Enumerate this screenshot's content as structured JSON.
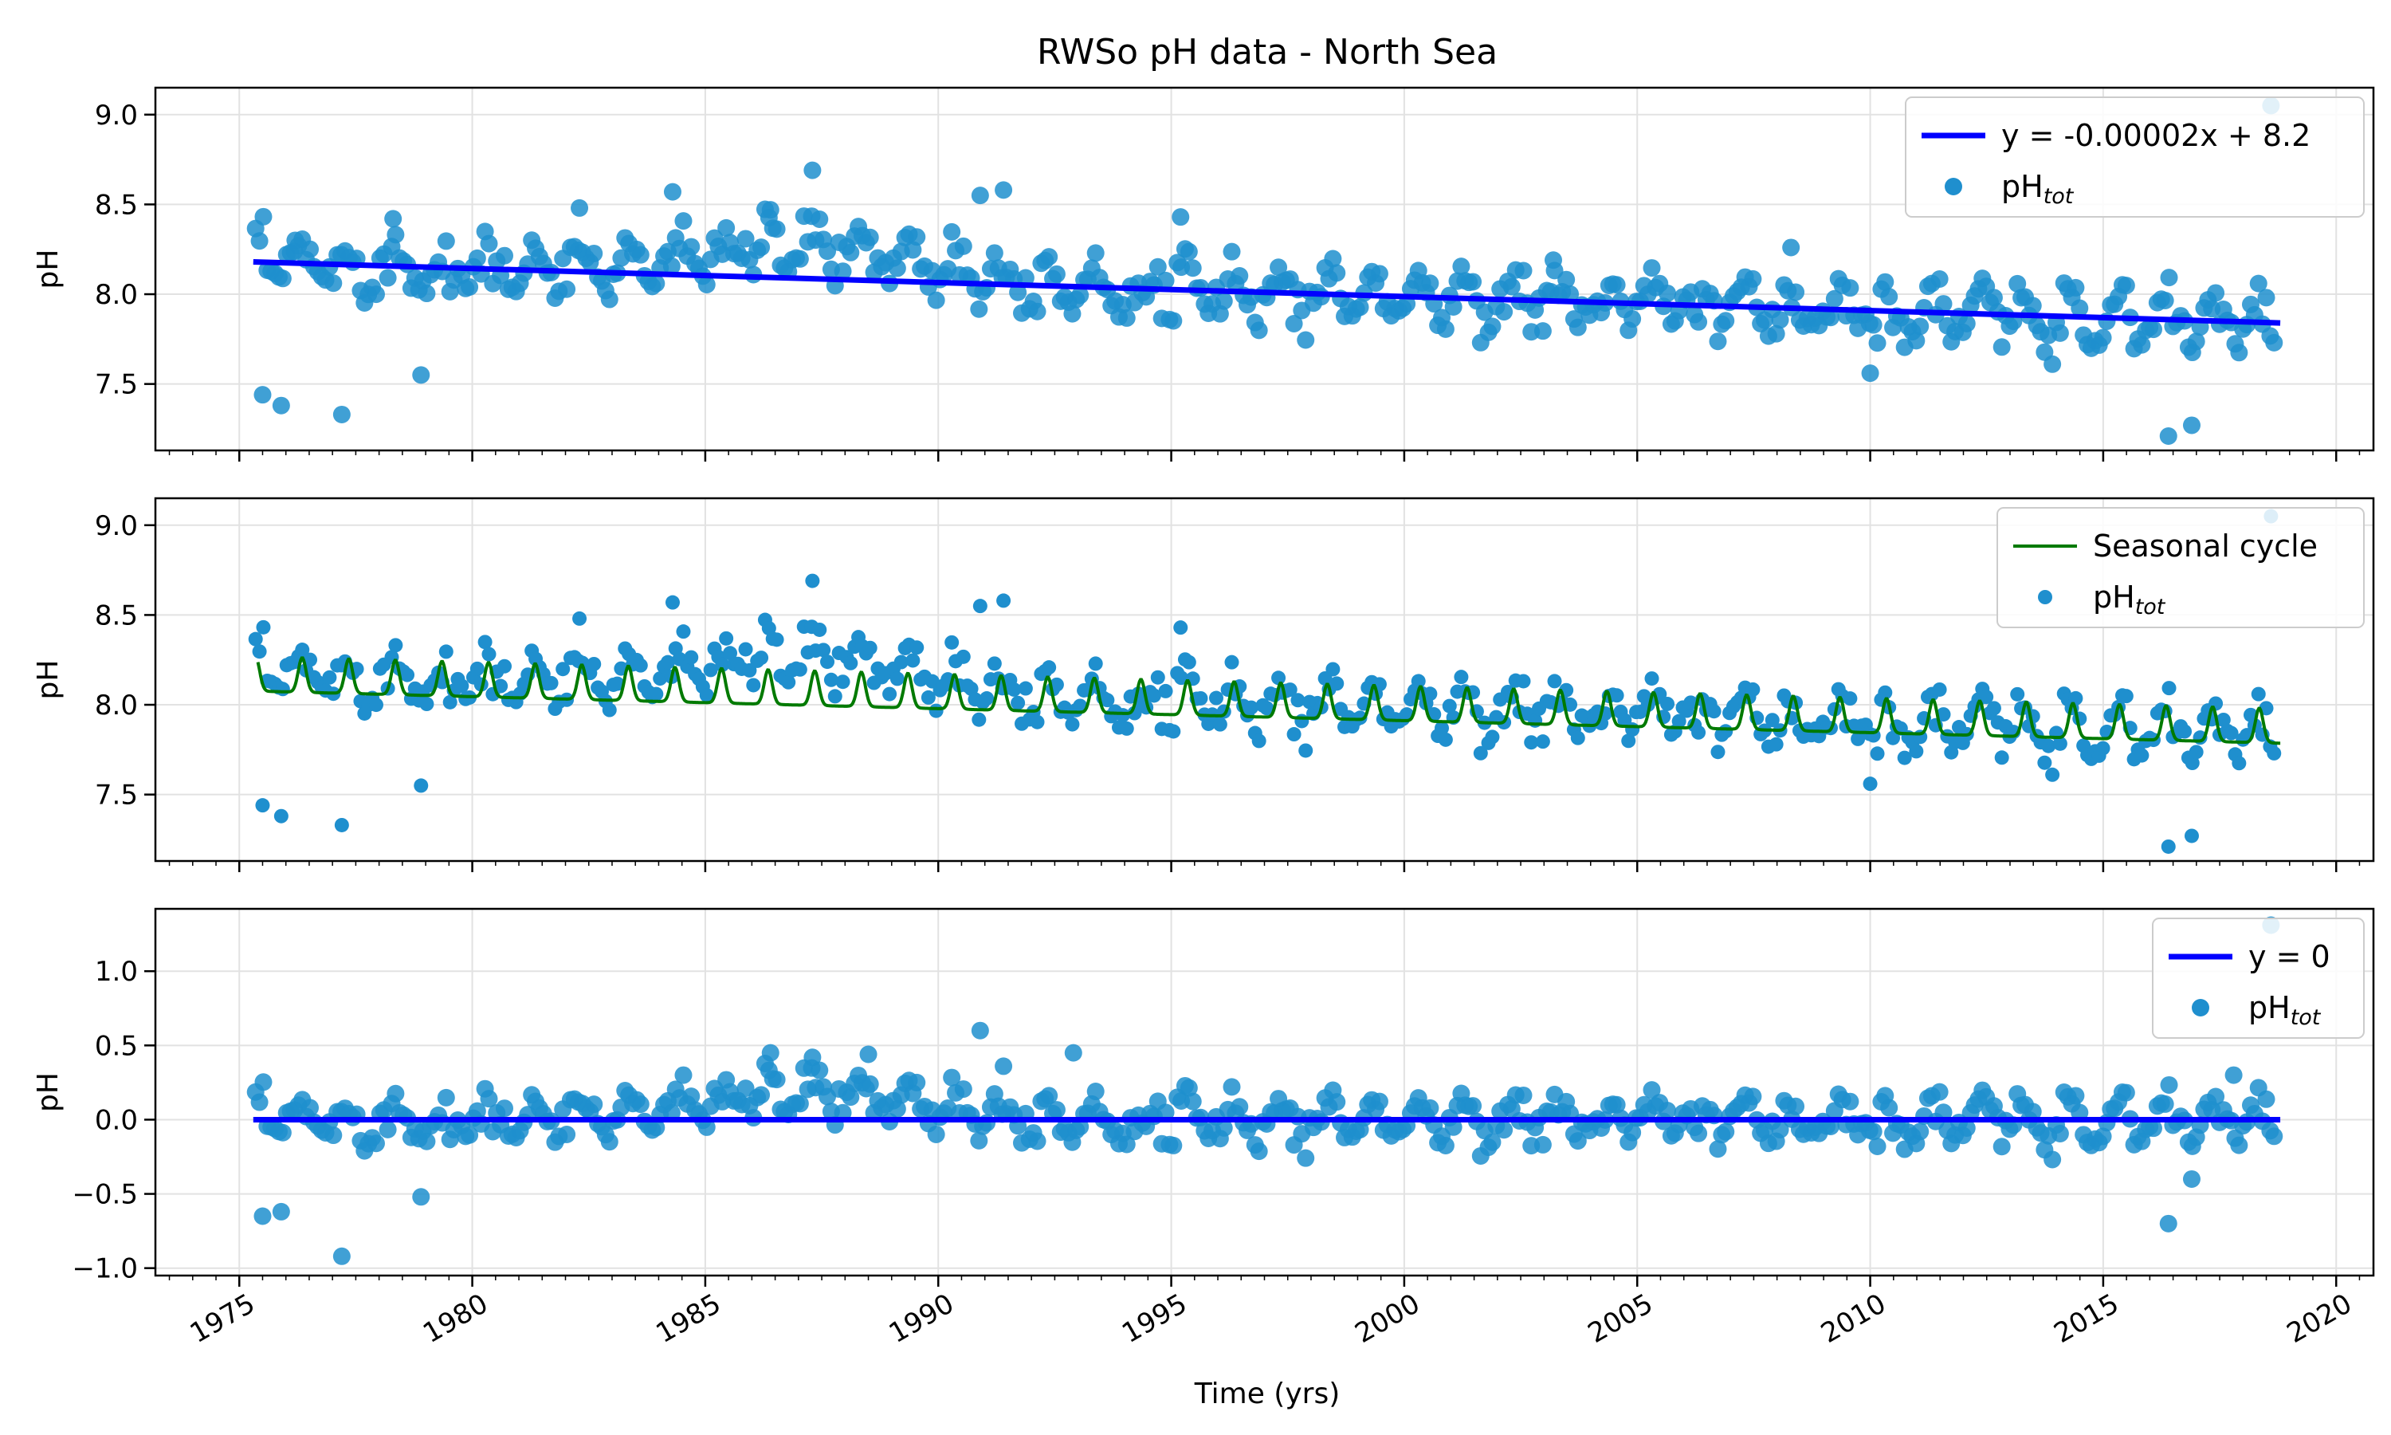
{
  "title": "RWSo pH data - North Sea",
  "xlabel": "Time (yrs)",
  "colors": {
    "points": "#1f8fce",
    "trend": "#0000ff",
    "seasonal": "#007a00",
    "grid": "#e2e2e2"
  },
  "chart_data": [
    {
      "type": "scatter",
      "panel": "top",
      "ylabel": "pH",
      "xlim": [
        1973.2,
        2020.8
      ],
      "ylim": [
        7.13,
        9.15
      ],
      "yticks": [
        7.5,
        8.0,
        8.5,
        9.0
      ],
      "ytick_labels": [
        "7.5",
        "8.0",
        "8.5",
        "9.0"
      ],
      "grid": true,
      "legend_position": "top-right",
      "legend": [
        {
          "kind": "line",
          "label": "y = -0.00002x + 8.2",
          "sub": ""
        },
        {
          "kind": "point",
          "label": "pH",
          "sub": "tot"
        }
      ],
      "fit_line": {
        "x": [
          1975.3,
          2018.8
        ],
        "y": [
          8.18,
          7.84
        ]
      },
      "sample_points": {
        "x": [
          1975.5,
          1975.9,
          1976.2,
          1977.2,
          1978.3,
          1978.9,
          1982.3,
          1984.3,
          1986.4,
          1987.3,
          1990.9,
          1991.4,
          1995.2,
          2003.2,
          2008.3,
          2010.0,
          2016.4,
          2016.9,
          2018.6
        ],
        "y": [
          7.44,
          7.38,
          8.3,
          7.33,
          8.42,
          7.55,
          8.48,
          8.57,
          8.47,
          8.69,
          8.55,
          8.58,
          8.43,
          8.19,
          8.26,
          7.56,
          7.21,
          7.27,
          9.05
        ]
      }
    },
    {
      "type": "scatter",
      "panel": "middle",
      "ylabel": "pH",
      "xlim": [
        1973.2,
        2020.8
      ],
      "ylim": [
        7.13,
        9.15
      ],
      "yticks": [
        7.5,
        8.0,
        8.5,
        9.0
      ],
      "ytick_labels": [
        "7.5",
        "8.0",
        "8.5",
        "9.0"
      ],
      "grid": true,
      "legend_position": "top-right",
      "legend": [
        {
          "kind": "line",
          "label": "Seasonal cycle",
          "sub": ""
        },
        {
          "kind": "point",
          "label": "pH",
          "sub": "tot"
        }
      ],
      "seasonal_cycle": {
        "x_range": [
          1975.4,
          2018.8
        ],
        "baseline": {
          "x": [
            1975.4,
            2018.8
          ],
          "y": [
            8.13,
            7.84
          ]
        },
        "amplitude": 0.12,
        "period_years": 1
      },
      "sample_points": {
        "x": [
          1975.5,
          1975.9,
          1977.2,
          1978.9,
          1982.3,
          1984.3,
          1987.3,
          1990.9,
          1991.4,
          1995.2,
          2010.0,
          2016.4,
          2016.9,
          2018.6
        ],
        "y": [
          7.44,
          7.38,
          7.33,
          7.55,
          8.48,
          8.57,
          8.69,
          8.55,
          8.58,
          8.43,
          7.56,
          7.21,
          7.27,
          9.05
        ]
      }
    },
    {
      "type": "scatter",
      "panel": "bottom",
      "ylabel": "pH",
      "xlim": [
        1973.2,
        2020.8
      ],
      "ylim": [
        -1.05,
        1.42
      ],
      "yticks": [
        -1.0,
        -0.5,
        0.0,
        0.5,
        1.0
      ],
      "ytick_labels": [
        "−1.0",
        "−0.5",
        "0.0",
        "0.5",
        "1.0"
      ],
      "xticks": [
        1975,
        1980,
        1985,
        1990,
        1995,
        2000,
        2005,
        2010,
        2015,
        2020
      ],
      "xtick_labels": [
        "1975",
        "1980",
        "1985",
        "1990",
        "1995",
        "2000",
        "2005",
        "2010",
        "2015",
        "2020"
      ],
      "grid": true,
      "legend_position": "top-right",
      "legend": [
        {
          "kind": "line",
          "label": "y = 0",
          "sub": ""
        },
        {
          "kind": "point",
          "label": "pH",
          "sub": "tot"
        }
      ],
      "fit_line": {
        "x": [
          1975.3,
          2018.8
        ],
        "y": [
          0.0,
          0.0
        ]
      },
      "sample_points": {
        "x": [
          1975.5,
          1975.9,
          1977.2,
          1978.9,
          1986.4,
          1987.3,
          1988.5,
          1990.9,
          1991.4,
          1992.9,
          2016.4,
          2016.9,
          2017.8,
          2018.6
        ],
        "y": [
          -0.65,
          -0.62,
          -0.92,
          -0.52,
          0.45,
          0.42,
          0.44,
          0.6,
          0.36,
          0.45,
          -0.7,
          -0.4,
          0.3,
          1.31
        ]
      }
    }
  ]
}
